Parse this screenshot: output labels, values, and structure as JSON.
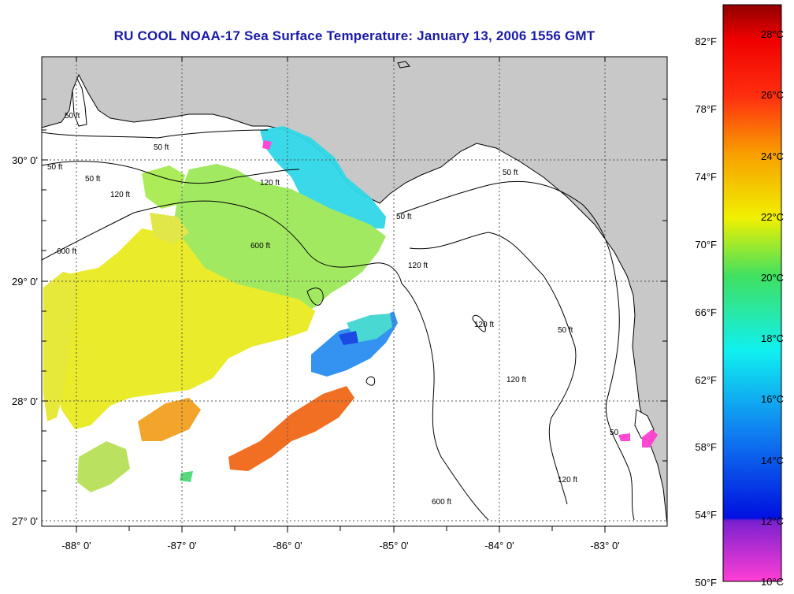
{
  "title": "RU COOL  NOAA-17  Sea Surface Temperature:  January 13, 2006 1556 GMT",
  "map": {
    "lat_labels": [
      "30° 0'",
      "29° 0'",
      "28° 0'",
      "27° 0'"
    ],
    "lon_labels": [
      "-88° 0'",
      "-87° 0'",
      "-86° 0'",
      "-85° 0'",
      "-84° 0'",
      "-83° 0'"
    ],
    "contour_labels": [
      "50 ft",
      "50 ft",
      "50 ft",
      "50 ft",
      "120 ft",
      "120 ft",
      "600 ft",
      "600 ft",
      "120 ft",
      "50 ft",
      "50 ft",
      "120 ft",
      "120 ft",
      "50 ft",
      "600 ft",
      "120 ft",
      "50"
    ],
    "colors": {
      "land": "#c8c8c8",
      "ocean": "#ffffff",
      "grid": "#555555",
      "title": "#1a1aa8"
    }
  },
  "colorbar": {
    "fahrenheit_labels": [
      "82°F",
      "78°F",
      "74°F",
      "70°F",
      "66°F",
      "62°F",
      "58°F",
      "54°F",
      "50°F"
    ],
    "celsius_labels": [
      "28°C",
      "26°C",
      "24°C",
      "22°C",
      "20°C",
      "18°C",
      "16°C",
      "14°C",
      "12°C",
      "10°C"
    ],
    "range_c": [
      10,
      29
    ],
    "stops": [
      {
        "c": 10,
        "color": "#ff3fd5"
      },
      {
        "c": 12,
        "color": "#7a20d0"
      },
      {
        "c": 12.1,
        "color": "#0010e0"
      },
      {
        "c": 15,
        "color": "#1080f0"
      },
      {
        "c": 17.5,
        "color": "#10f0f0"
      },
      {
        "c": 20,
        "color": "#40e060"
      },
      {
        "c": 22,
        "color": "#f0f000"
      },
      {
        "c": 24,
        "color": "#f8a000"
      },
      {
        "c": 26,
        "color": "#ff3010"
      },
      {
        "c": 28,
        "color": "#f00000"
      },
      {
        "c": 29,
        "color": "#900000"
      }
    ]
  }
}
